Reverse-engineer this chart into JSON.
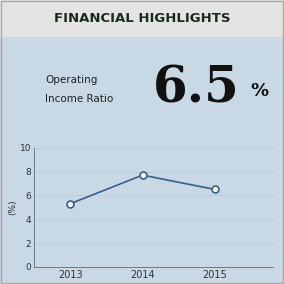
{
  "title": "FINANCIAL HIGHLIGHTS",
  "label_line1": "Operating",
  "label_line2": "Income Ratio",
  "big_number": "6.5",
  "big_percent": "%",
  "years": [
    2013,
    2014,
    2015
  ],
  "values": [
    5.3,
    7.7,
    6.5
  ],
  "ylim": [
    0,
    10
  ],
  "yticks": [
    0,
    2,
    4,
    6,
    8,
    10
  ],
  "ylabel": "(%)",
  "line_color": "#3a5f8a",
  "marker_color": "#3a5f8a",
  "title_bg_color": "#e8e8e8",
  "chart_bg_color": "#dce8f0",
  "title_font_color": "#1a2a1a",
  "axis_color": "#555555",
  "tick_label_color": "#333333"
}
